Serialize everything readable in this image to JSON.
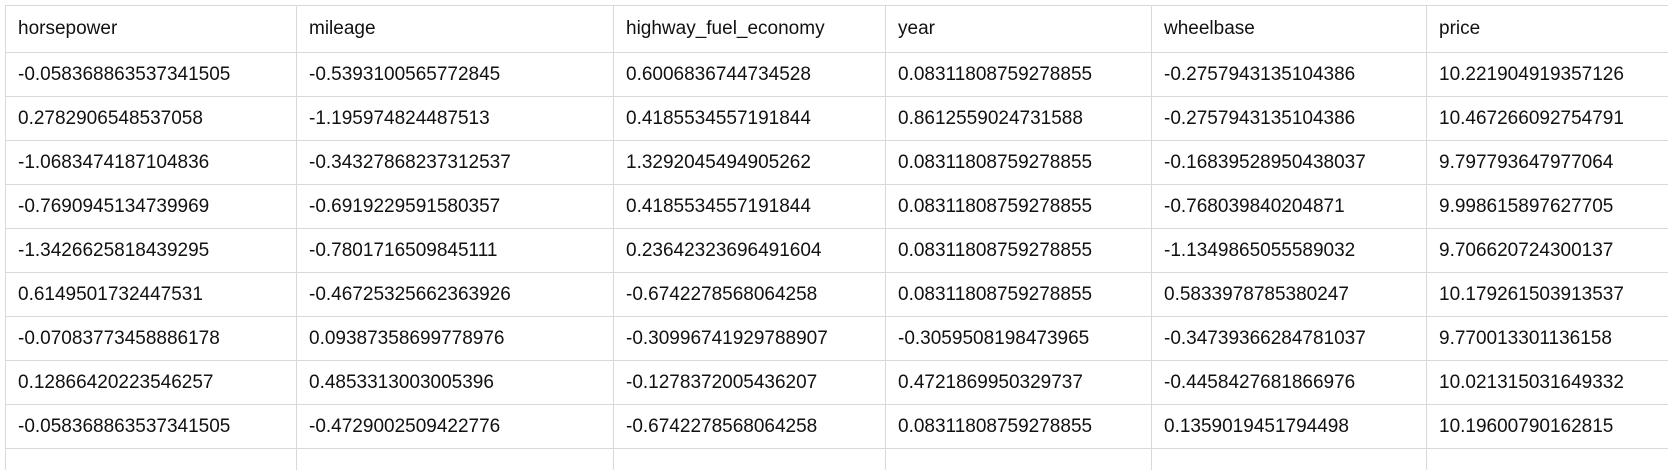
{
  "table": {
    "columns": [
      "horsepower",
      "mileage",
      "highway_fuel_economy",
      "year",
      "wheelbase",
      "price"
    ],
    "rows": [
      [
        "-0.058368863537341505",
        "-0.5393100565772845",
        "0.6006836744734528",
        "0.08311808759278855",
        "-0.2757943135104386",
        "10.221904919357126"
      ],
      [
        "0.2782906548537058",
        "-1.195974824487513",
        "0.4185534557191844",
        "0.8612559024731588",
        "-0.2757943135104386",
        "10.467266092754791"
      ],
      [
        "-1.0683474187104836",
        "-0.34327868237312537",
        "1.3292045494905262",
        "0.08311808759278855",
        "-0.16839528950438037",
        "9.797793647977064"
      ],
      [
        "-0.7690945134739969",
        "-0.6919229591580357",
        "0.4185534557191844",
        "0.08311808759278855",
        "-0.768039840204871",
        "9.998615897627705"
      ],
      [
        "-1.3426625818439295",
        "-0.7801716509845111",
        "0.23642323696491604",
        "0.08311808759278855",
        "-1.1349865055589032",
        "9.706620724300137"
      ],
      [
        "0.6149501732447531",
        "-0.46725325662363926",
        "-0.6742278568064258",
        "0.08311808759278855",
        "0.5833978785380247",
        "10.179261503913537"
      ],
      [
        "-0.07083773458886178",
        "0.09387358699778976",
        "-0.30996741929788907",
        "-0.3059508198473965",
        "-0.34739366284781037",
        "9.770013301136158"
      ],
      [
        "0.12866420223546257",
        "0.4853313003005396",
        "-0.1278372005436207",
        "0.4721869950329737",
        "-0.4458427681866976",
        "10.021315031649332"
      ],
      [
        "-0.058368863537341505",
        "-0.4729002509422776",
        "-0.6742278568064258",
        "0.08311808759278855",
        "0.1359019451794498",
        "10.19600790162815"
      ],
      [
        "",
        "",
        "",
        "",
        "",
        ""
      ]
    ]
  }
}
